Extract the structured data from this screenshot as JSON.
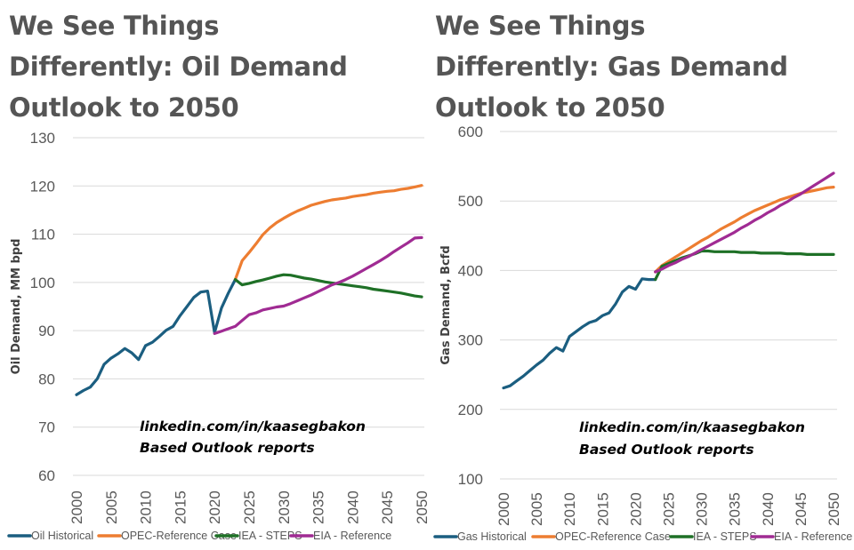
{
  "chart_data": [
    {
      "type": "line",
      "title": "We See Things Differently: Oil Demand Outlook to 2050",
      "title_lines": [
        "We See Things",
        "Differently: Oil Demand",
        "Outlook to 2050"
      ],
      "xlabel": "",
      "ylabel": "Oil Demand, MM bpd",
      "xlim": [
        2000,
        2050
      ],
      "ylim": [
        60,
        130
      ],
      "x_ticks": [
        2000,
        2005,
        2010,
        2015,
        2020,
        2025,
        2030,
        2035,
        2040,
        2045,
        2050
      ],
      "y_ticks": [
        60,
        70,
        80,
        90,
        100,
        110,
        120,
        130
      ],
      "grid": "horizontal",
      "legend": "bottom",
      "annotations": [
        "linkedin.com/in/kaasegbakon",
        "Based Outlook reports"
      ],
      "series": [
        {
          "name": "Oil Historical",
          "color": "#1B5E80",
          "x_start": 2000,
          "values": [
            76.7,
            77.6,
            78.3,
            80.0,
            83.0,
            84.3,
            85.2,
            86.3,
            85.4,
            84.0,
            86.9,
            87.6,
            88.8,
            90.1,
            90.9,
            93.1,
            95.0,
            96.9,
            98.0,
            98.2,
            89.6,
            94.7,
            97.8,
            100.6
          ]
        },
        {
          "name": "OPEC-Reference Case",
          "color": "#ED7D31",
          "x_start": 2023,
          "values": [
            100.6,
            104.5,
            106.2,
            108.0,
            109.9,
            111.3,
            112.4,
            113.3,
            114.1,
            114.8,
            115.4,
            116.0,
            116.4,
            116.8,
            117.1,
            117.3,
            117.5,
            117.8,
            118.0,
            118.2,
            118.5,
            118.7,
            118.9,
            119.0,
            119.3,
            119.5,
            119.8,
            120.1
          ]
        },
        {
          "name": "IEA - STEPS",
          "color": "#1E7026",
          "x_start": 2023,
          "values": [
            100.6,
            99.5,
            99.8,
            100.2,
            100.5,
            100.9,
            101.3,
            101.6,
            101.5,
            101.2,
            100.9,
            100.7,
            100.4,
            100.1,
            99.9,
            99.7,
            99.5,
            99.3,
            99.1,
            98.9,
            98.6,
            98.4,
            98.2,
            98.0,
            97.8,
            97.5,
            97.2,
            97.0
          ]
        },
        {
          "name": "EIA - Reference",
          "color": "#A02B93",
          "x_start": 2020,
          "values": [
            89.4,
            89.9,
            90.4,
            90.9,
            92.1,
            93.3,
            93.7,
            94.3,
            94.6,
            94.9,
            95.1,
            95.6,
            96.2,
            96.8,
            97.4,
            98.1,
            98.8,
            99.5,
            100.0,
            100.6,
            101.3,
            102.1,
            102.9,
            103.7,
            104.5,
            105.4,
            106.4,
            107.3,
            108.2,
            109.2,
            109.3
          ]
        }
      ]
    },
    {
      "type": "line",
      "title": "We See Things Differently: Gas Demand Outlook to 2050",
      "title_lines": [
        "We See Things",
        "Differently: Gas Demand",
        "Outlook to 2050"
      ],
      "xlabel": "",
      "ylabel": "Gas Demand, Bcfd",
      "xlim": [
        2000,
        2050
      ],
      "ylim": [
        100,
        600
      ],
      "x_ticks": [
        2000,
        2005,
        2010,
        2015,
        2020,
        2025,
        2030,
        2035,
        2040,
        2045,
        2050
      ],
      "y_ticks": [
        100,
        200,
        300,
        400,
        500,
        600
      ],
      "grid": "horizontal",
      "legend": "bottom",
      "annotations": [
        "linkedin.com/in/kaasegbakon",
        "Based Outlook reports"
      ],
      "series": [
        {
          "name": "Gas Historical",
          "color": "#1B5E80",
          "x_start": 2000,
          "values": [
            231,
            234,
            241,
            248,
            256,
            264,
            271,
            281,
            289,
            284,
            305,
            312,
            319,
            325,
            328,
            335,
            339,
            352,
            369,
            377,
            373,
            388,
            387,
            387
          ]
        },
        {
          "name": "OPEC-Reference Case",
          "color": "#ED7D31",
          "x_start": 2023,
          "values": [
            398,
            407,
            413,
            419,
            425,
            431,
            437,
            443,
            448,
            454,
            460,
            465,
            470,
            476,
            481,
            486,
            490,
            494,
            498,
            502,
            505,
            508,
            511,
            513,
            515,
            517,
            519,
            520
          ]
        },
        {
          "name": "IEA - STEPS",
          "color": "#1E7026",
          "x_start": 2023,
          "values": [
            387,
            406,
            410,
            414,
            418,
            421,
            424,
            428,
            428,
            427,
            427,
            427,
            427,
            426,
            426,
            426,
            425,
            425,
            425,
            425,
            424,
            424,
            424,
            423,
            423,
            423,
            423,
            423
          ]
        },
        {
          "name": "EIA - Reference",
          "color": "#A02B93",
          "x_start": 2023,
          "values": [
            398,
            402,
            407,
            411,
            416,
            420,
            425,
            430,
            435,
            440,
            445,
            450,
            455,
            461,
            466,
            472,
            477,
            483,
            488,
            494,
            499,
            505,
            510,
            516,
            522,
            528,
            534,
            540
          ]
        }
      ]
    }
  ]
}
